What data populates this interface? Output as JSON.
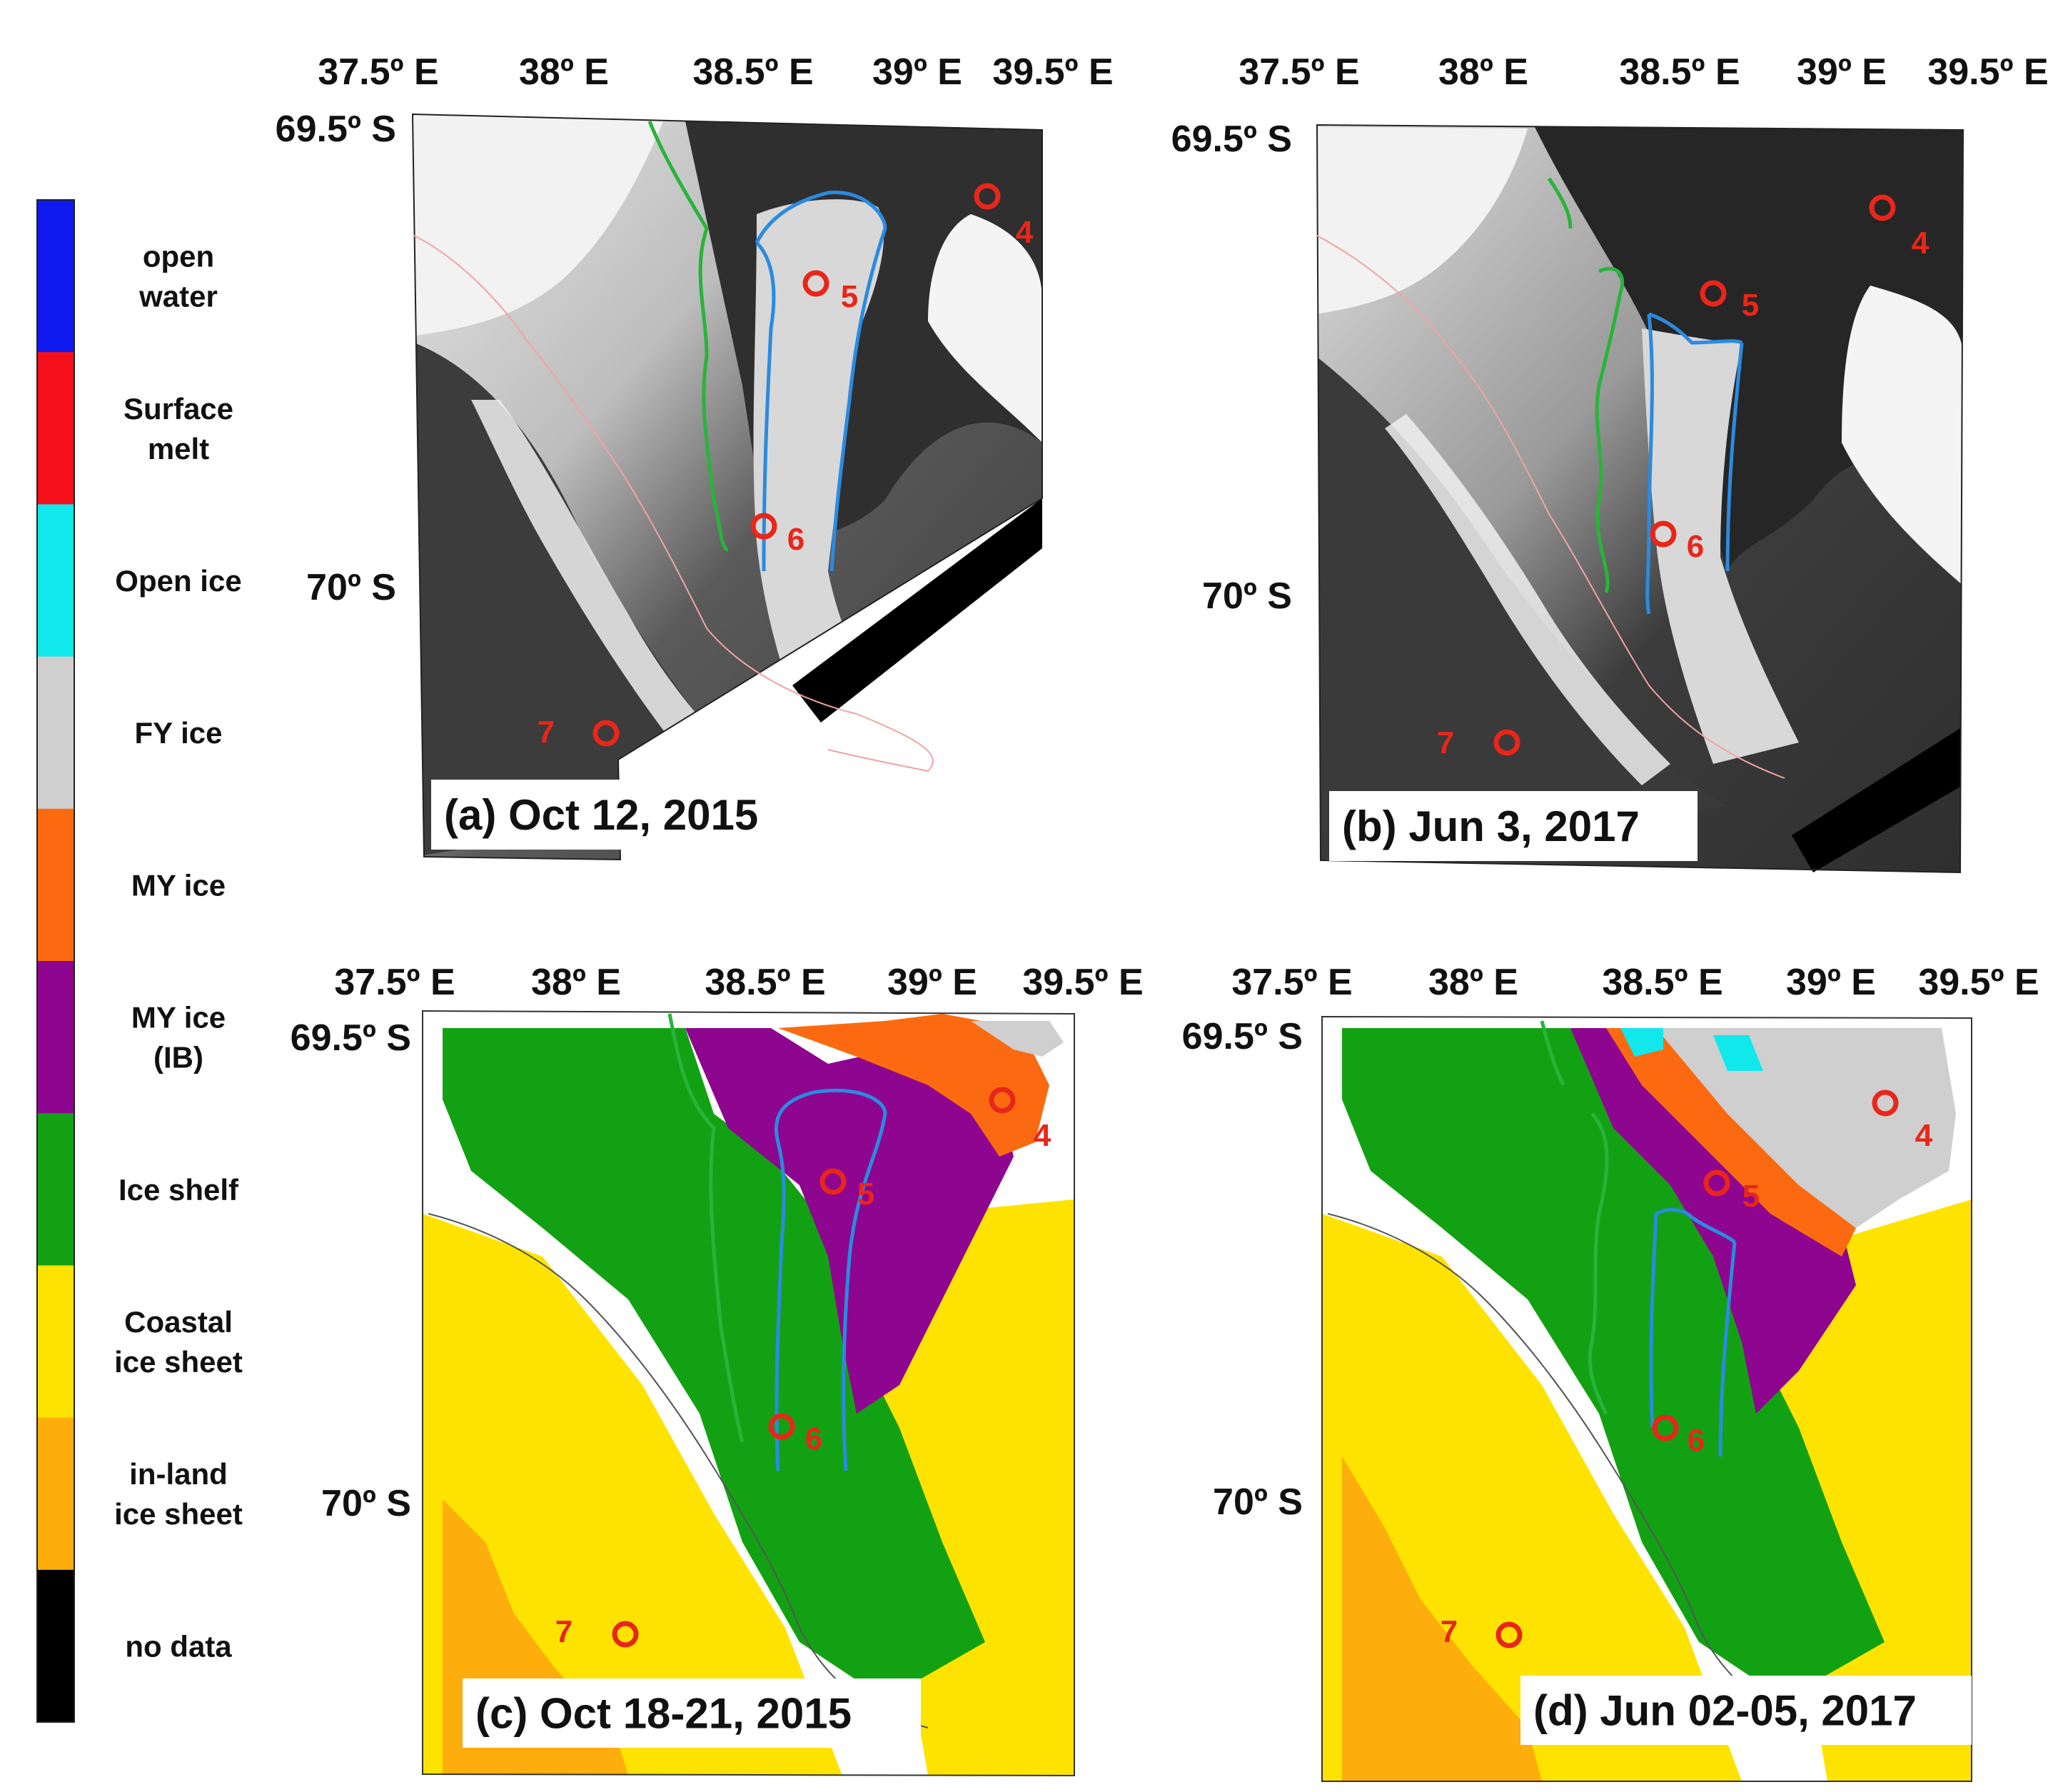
{
  "legend": {
    "items": [
      {
        "lines": [
          "open",
          "water"
        ],
        "color": "#1019f0"
      },
      {
        "lines": [
          "Surface",
          "melt"
        ],
        "color": "#f4101a"
      },
      {
        "lines": [
          "Open ice"
        ],
        "color": "#10e8ec"
      },
      {
        "lines": [
          "FY ice"
        ],
        "color": "#cfcfcf"
      },
      {
        "lines": [
          "MY ice"
        ],
        "color": "#fb6a10"
      },
      {
        "lines": [
          "MY ice",
          "(IB)"
        ],
        "color": "#8e058f"
      },
      {
        "lines": [
          "Ice shelf"
        ],
        "color": "#13a114"
      },
      {
        "lines": [
          "Coastal",
          "ice sheet"
        ],
        "color": "#ffe300"
      },
      {
        "lines": [
          "in-land",
          "ice sheet"
        ],
        "color": "#fdae0c"
      },
      {
        "lines": [
          "no data"
        ],
        "color": "#000000"
      }
    ]
  },
  "colors": {
    "site_marker": "#e8261a",
    "green_line": "#28b43a",
    "blue_line": "#2a8be0",
    "pink_coast": "#f2a3a3",
    "sar_dark": "#2a2a2a",
    "sar_light": "#f2f2f2",
    "coastline": "#555555"
  },
  "panels": [
    {
      "id": "a",
      "type": "sar",
      "caption": "(a) Oct 12, 2015",
      "lon_labels": [
        "37.5º E",
        "38º E",
        "38.5º E",
        "39º E",
        "39.5º E"
      ],
      "lat_labels": [
        "69.5º S",
        "70º S"
      ],
      "sites": [
        "4",
        "5",
        "6",
        "7"
      ]
    },
    {
      "id": "b",
      "type": "sar",
      "caption": "(b) Jun 3, 2017",
      "lon_labels": [
        "37.5º E",
        "38º E",
        "38.5º E",
        "39º E",
        "39.5º E"
      ],
      "lat_labels": [
        "69.5º S",
        "70º S"
      ],
      "sites": [
        "4",
        "5",
        "6",
        "7"
      ]
    },
    {
      "id": "c",
      "type": "class",
      "caption": "(c) Oct 18-21, 2015",
      "lon_labels": [
        "37.5º E",
        "38º E",
        "38.5º E",
        "39º E",
        "39.5º E"
      ],
      "lat_labels": [
        "69.5º S",
        "70º S"
      ],
      "sites": [
        "4",
        "5",
        "6",
        "7"
      ]
    },
    {
      "id": "d",
      "type": "class",
      "caption": "(d) Jun 02-05, 2017",
      "lon_labels": [
        "37.5º E",
        "38º E",
        "38.5º E",
        "39º E",
        "39.5º E"
      ],
      "lat_labels": [
        "69.5º S",
        "70º S"
      ],
      "sites": [
        "4",
        "5",
        "6",
        "7"
      ]
    }
  ]
}
